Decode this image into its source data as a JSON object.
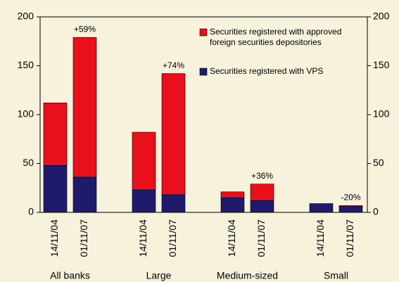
{
  "chart_data": {
    "type": "stacked_bar",
    "categories": [
      "14/11/04",
      "01/11/07",
      "14/11/04",
      "01/11/07",
      "14/11/04",
      "01/11/07",
      "14/11/04",
      "01/11/07"
    ],
    "groups": [
      "All banks",
      "Large",
      "Medium-sized",
      "Small"
    ],
    "series": [
      {
        "name": "Securities registered with VPS",
        "color": "#1f1a6b",
        "values": [
          48,
          36,
          23,
          18,
          15,
          12,
          9,
          6
        ]
      },
      {
        "name": "Securities registered with approved foreign securities depositories",
        "color": "#e8101a",
        "values": [
          64,
          143,
          59,
          124,
          6,
          17,
          0,
          1
        ]
      }
    ],
    "annotations": [
      "+59%",
      "+74%",
      "+36%",
      "-20%"
    ],
    "ylim": [
      0,
      200
    ],
    "yticks": [
      0,
      50,
      100,
      150,
      200
    ],
    "y2lim": [
      0,
      200
    ],
    "y2ticks": [
      0,
      50,
      100,
      150,
      200
    ],
    "grid": false
  }
}
